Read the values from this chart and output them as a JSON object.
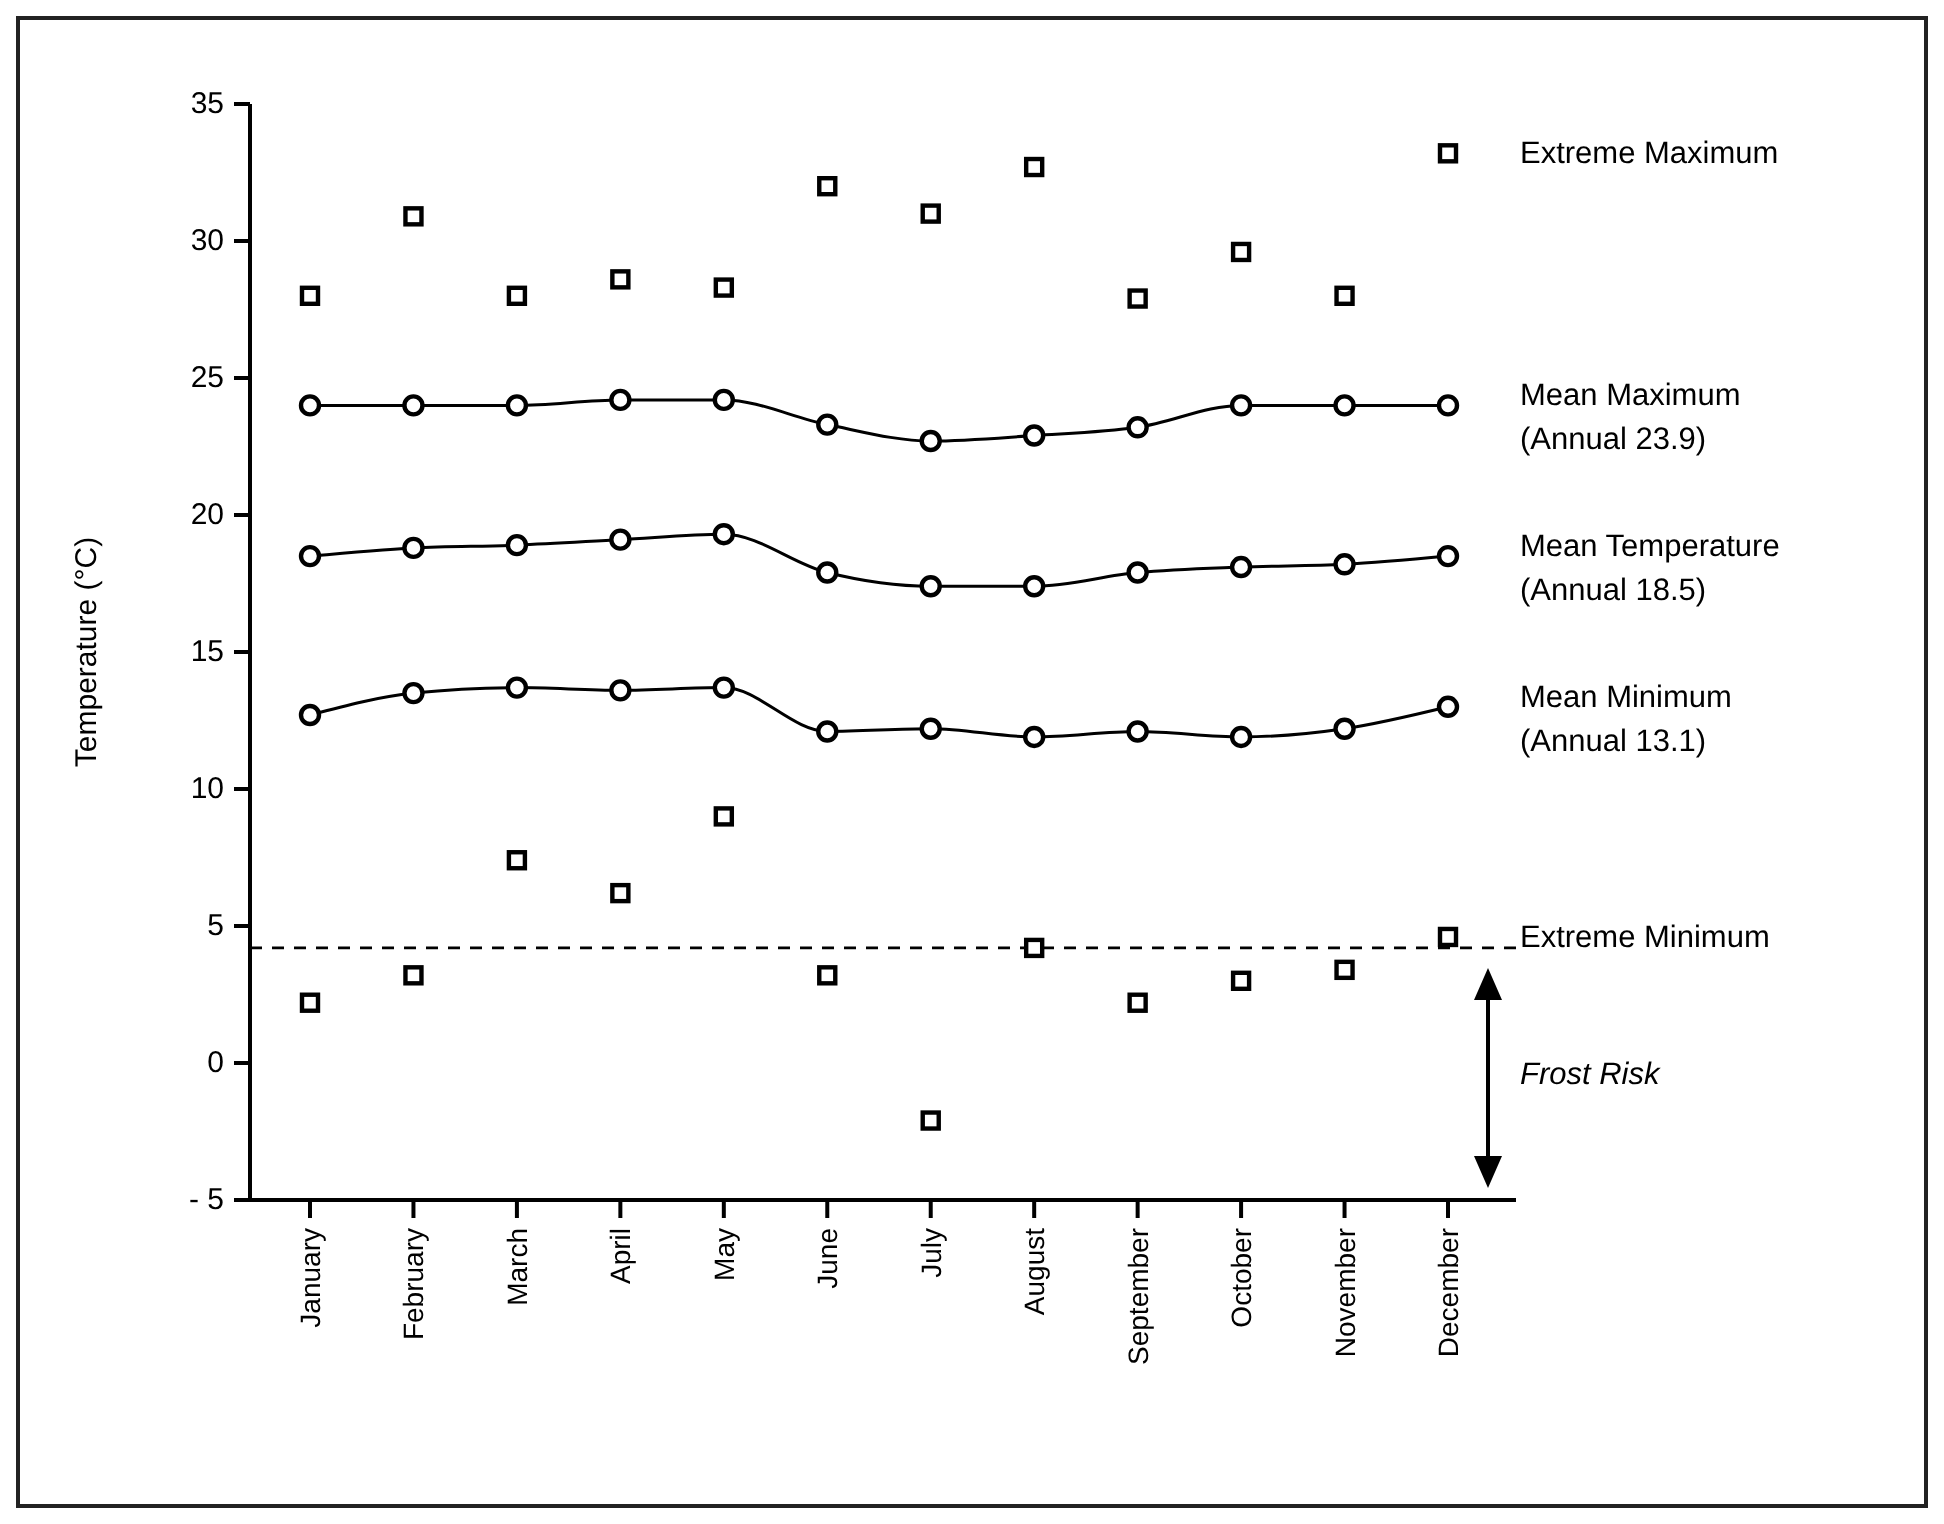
{
  "chart_data": {
    "type": "line",
    "ylabel": "Temperature (°C)",
    "categories": [
      "January",
      "February",
      "March",
      "April",
      "May",
      "June",
      "July",
      "August",
      "September",
      "October",
      "November",
      "December"
    ],
    "series": [
      {
        "name": "Extreme Maximum",
        "type": "scatter",
        "marker": "square",
        "color": "#000000",
        "values": [
          28.0,
          30.9,
          28.0,
          28.6,
          28.3,
          32.0,
          31.0,
          32.7,
          27.9,
          29.6,
          28.0,
          33.2
        ]
      },
      {
        "name": "Mean Maximum\n(Annual 23.9)",
        "type": "line",
        "marker": "circle",
        "color": "#000000",
        "values": [
          24.0,
          24.0,
          24.0,
          24.2,
          24.2,
          23.3,
          22.7,
          22.9,
          23.2,
          24.0,
          24.0,
          24.0
        ]
      },
      {
        "name": "Mean Temperature\n(Annual 18.5)",
        "type": "line",
        "marker": "circle",
        "color": "#000000",
        "values": [
          18.5,
          18.8,
          18.9,
          19.1,
          19.3,
          17.9,
          17.4,
          17.4,
          17.9,
          18.1,
          18.2,
          18.5
        ]
      },
      {
        "name": "Mean Minimum\n(Annual 13.1)",
        "type": "line",
        "marker": "circle",
        "color": "#000000",
        "values": [
          12.7,
          13.5,
          13.7,
          13.6,
          13.7,
          12.1,
          12.2,
          11.9,
          12.1,
          11.9,
          12.2,
          13.0
        ]
      },
      {
        "name": "Extreme Minimum",
        "type": "scatter",
        "marker": "square",
        "color": "#000000",
        "values": [
          2.2,
          3.2,
          7.4,
          6.2,
          9.0,
          3.2,
          -2.1,
          4.2,
          2.2,
          3.0,
          3.4,
          4.6
        ]
      }
    ],
    "ylim": [
      -5,
      35
    ],
    "yticks": [
      -5,
      0,
      5,
      10,
      15,
      20,
      25,
      30,
      35
    ],
    "grid": false,
    "legend": "right",
    "ref_lines": [
      {
        "axis": "y",
        "value": 4.2,
        "line_style": "dashed",
        "color": "#000000"
      }
    ],
    "annotations": [
      "Frost Risk"
    ]
  }
}
